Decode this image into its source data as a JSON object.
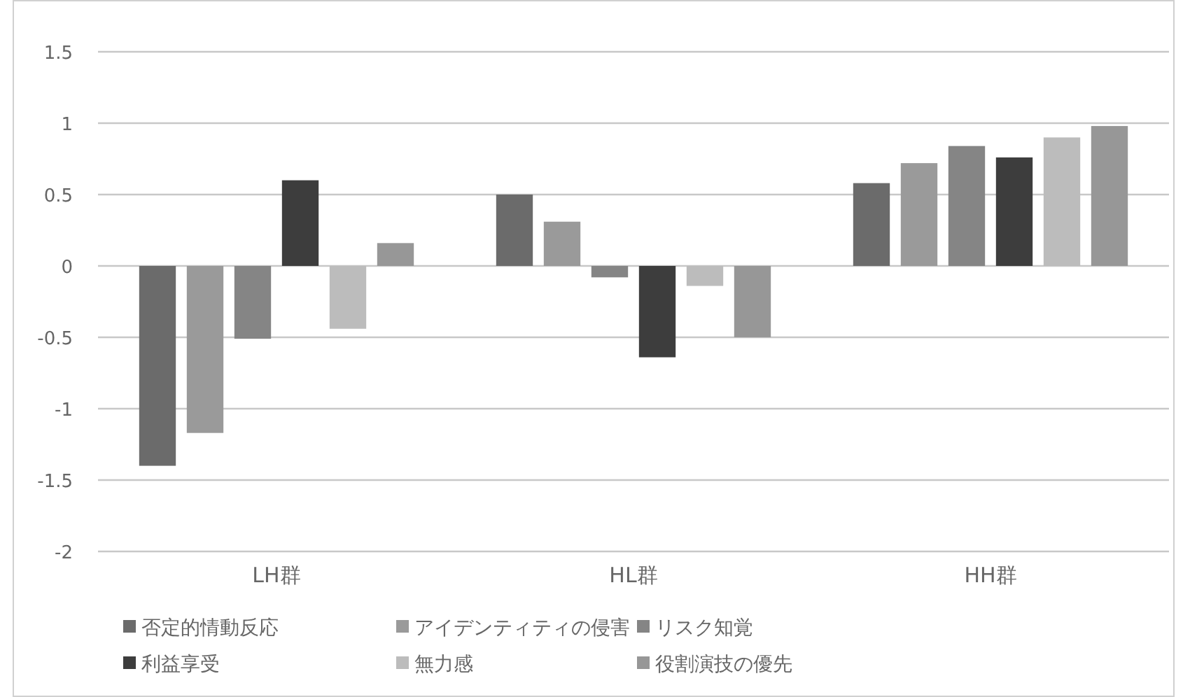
{
  "chart_data": {
    "type": "bar",
    "categories": [
      "LH群",
      "HL群",
      "HH群"
    ],
    "series": [
      {
        "name": "否定的情動反応",
        "color": "#6b6b6b",
        "values": [
          -1.4,
          0.5,
          0.58
        ]
      },
      {
        "name": "アイデンティティの侵害",
        "color": "#9a9a9a",
        "values": [
          -1.17,
          0.31,
          0.72
        ]
      },
      {
        "name": "リスク知覚",
        "color": "#858585",
        "values": [
          -0.51,
          -0.08,
          0.84
        ]
      },
      {
        "name": "利益享受",
        "color": "#3d3d3d",
        "values": [
          0.6,
          -0.64,
          0.76
        ]
      },
      {
        "name": "無力感",
        "color": "#bcbcbc",
        "values": [
          -0.44,
          -0.14,
          0.9
        ]
      },
      {
        "name": "役割演技の優先",
        "color": "#979797",
        "values": [
          0.16,
          -0.5,
          0.98
        ]
      }
    ],
    "ylim": [
      -2,
      1.5
    ],
    "yticks": [
      -2,
      -1.5,
      -1,
      -0.5,
      0,
      0.5,
      1,
      1.5
    ],
    "grid": "y",
    "legend": "bottom"
  }
}
